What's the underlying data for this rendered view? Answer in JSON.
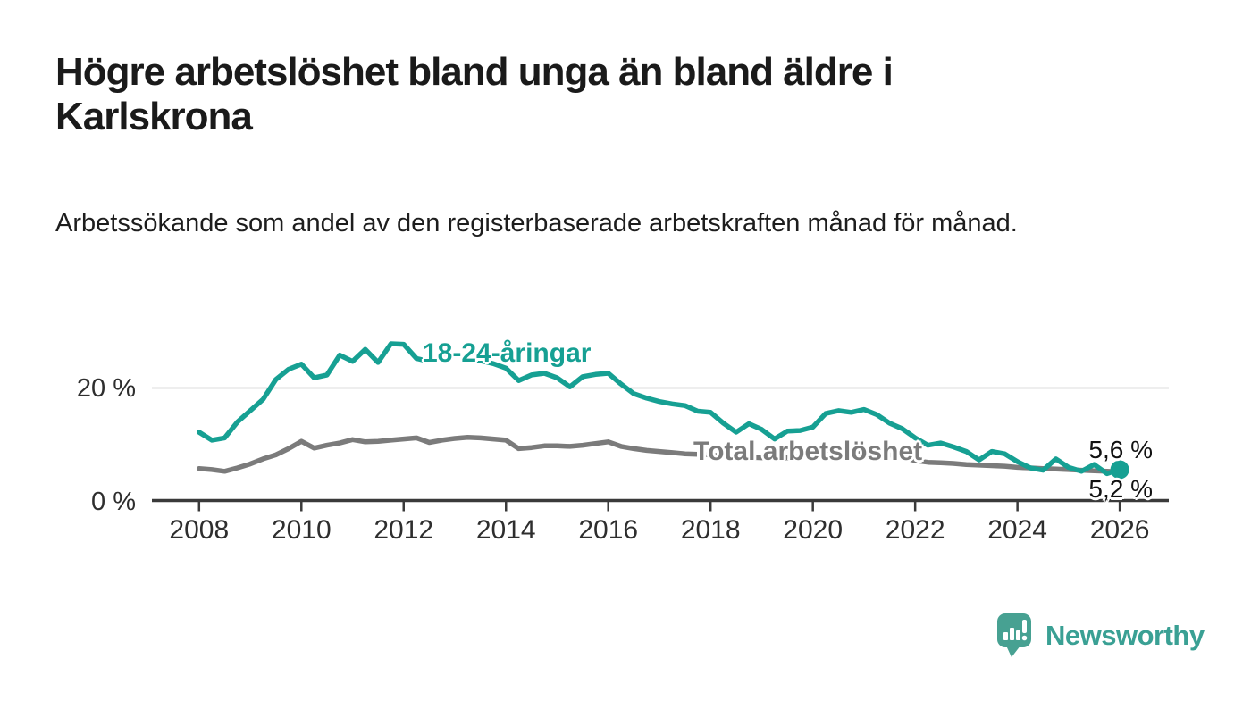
{
  "header": {
    "title": "Högre arbetslöshet bland unga än bland äldre i Karlskrona",
    "subtitle": "Arbetssökande som andel av den registerbaserade arbetskraften månad för månad."
  },
  "colors": {
    "young_line": "#16a093",
    "total_line": "#7b7b7b",
    "axis": "#3a3a3a",
    "gridline": "#dcdcdc",
    "logo_teal": "#47a192",
    "logo_text_teal": "#3aa094"
  },
  "chart_data": {
    "type": "line",
    "title": "Högre arbetslöshet bland unga än bland äldre i Karlskrona",
    "subtitle": "Arbetssökande som andel av den registerbaserade arbetskraften månad för månad.",
    "xlabel": "",
    "ylabel": "",
    "xlim": [
      2007.1,
      2026.95
    ],
    "ylim": [
      0,
      30
    ],
    "grid": "horizontal line at 20% only",
    "legend_position": "inline labels on lines",
    "y_ticks": [
      {
        "label": "20 %",
        "value": 20
      },
      {
        "label": "0 %",
        "value": 0
      }
    ],
    "x_ticks": [
      {
        "label": "2008",
        "year": 2008
      },
      {
        "label": "2010",
        "year": 2010
      },
      {
        "label": "2012",
        "year": 2012
      },
      {
        "label": "2014",
        "year": 2014
      },
      {
        "label": "2016",
        "year": 2016
      },
      {
        "label": "2018",
        "year": 2018
      },
      {
        "label": "2020",
        "year": 2020
      },
      {
        "label": "2022",
        "year": 2022
      },
      {
        "label": "2024",
        "year": 2024
      },
      {
        "label": "2026",
        "year": 2026
      }
    ],
    "x": [
      2008,
      2008.25,
      2008.5,
      2008.75,
      2009,
      2009.25,
      2009.5,
      2009.75,
      2010,
      2010.25,
      2010.5,
      2010.75,
      2011,
      2011.25,
      2011.5,
      2011.75,
      2012,
      2012.25,
      2012.5,
      2012.75,
      2013,
      2013.25,
      2013.5,
      2013.75,
      2014,
      2014.25,
      2014.5,
      2014.75,
      2015,
      2015.25,
      2015.5,
      2015.75,
      2016,
      2016.25,
      2016.5,
      2016.75,
      2017,
      2017.25,
      2017.5,
      2017.75,
      2018,
      2018.25,
      2018.5,
      2018.75,
      2019,
      2019.25,
      2019.5,
      2019.75,
      2020,
      2020.25,
      2020.5,
      2020.75,
      2021,
      2021.25,
      2021.5,
      2021.75,
      2022,
      2022.25,
      2022.5,
      2022.75,
      2023,
      2023.25,
      2023.5,
      2023.75,
      2024,
      2024.25,
      2024.5,
      2024.75,
      2025,
      2025.25,
      2025.5,
      2025.75,
      2026
    ],
    "series": [
      {
        "name": "18-24-åringar",
        "color": "#16a093",
        "end_marker": true,
        "values": [
          12.2,
          10.8,
          11.2,
          14.0,
          16.0,
          18.0,
          21.5,
          23.3,
          24.2,
          21.8,
          22.3,
          25.8,
          24.7,
          26.8,
          24.5,
          27.8,
          27.7,
          25.2,
          24.7,
          25.3,
          25.8,
          25.2,
          24.8,
          24.3,
          23.5,
          21.3,
          22.3,
          22.6,
          21.8,
          20.2,
          22.0,
          22.4,
          22.6,
          20.7,
          19.0,
          18.2,
          17.6,
          17.2,
          16.9,
          15.9,
          15.7,
          13.8,
          12.2,
          13.7,
          12.7,
          11.0,
          12.4,
          12.5,
          13.1,
          15.5,
          16.0,
          15.7,
          16.2,
          15.3,
          13.8,
          12.8,
          11.2,
          9.9,
          10.3,
          9.6,
          8.8,
          7.3,
          8.8,
          8.4,
          7.0,
          5.9,
          5.5,
          7.5,
          6.0,
          5.3,
          6.5,
          4.9,
          5.6
        ]
      },
      {
        "name": "Total arbetslöshet",
        "color": "#7b7b7b",
        "end_marker": false,
        "values": [
          5.8,
          5.6,
          5.3,
          5.9,
          6.6,
          7.5,
          8.2,
          9.3,
          10.6,
          9.4,
          9.9,
          10.3,
          10.9,
          10.5,
          10.6,
          10.8,
          11.0,
          11.2,
          10.4,
          10.8,
          11.1,
          11.3,
          11.2,
          11.0,
          10.8,
          9.3,
          9.5,
          9.8,
          9.8,
          9.7,
          9.9,
          10.2,
          10.5,
          9.7,
          9.3,
          9.0,
          8.8,
          8.6,
          8.4,
          8.3,
          8.2,
          8.0,
          7.9,
          7.8,
          7.7,
          7.6,
          7.7,
          7.9,
          8.2,
          9.0,
          9.2,
          9.0,
          8.8,
          8.5,
          8.2,
          7.8,
          7.2,
          6.9,
          6.8,
          6.7,
          6.5,
          6.4,
          6.3,
          6.2,
          6.0,
          5.9,
          5.8,
          5.7,
          5.6,
          5.5,
          5.4,
          5.3,
          5.2
        ]
      }
    ],
    "end_labels": [
      "5,6 %",
      "5,2 %"
    ]
  },
  "footer": {
    "brand": "Newsworthy"
  }
}
